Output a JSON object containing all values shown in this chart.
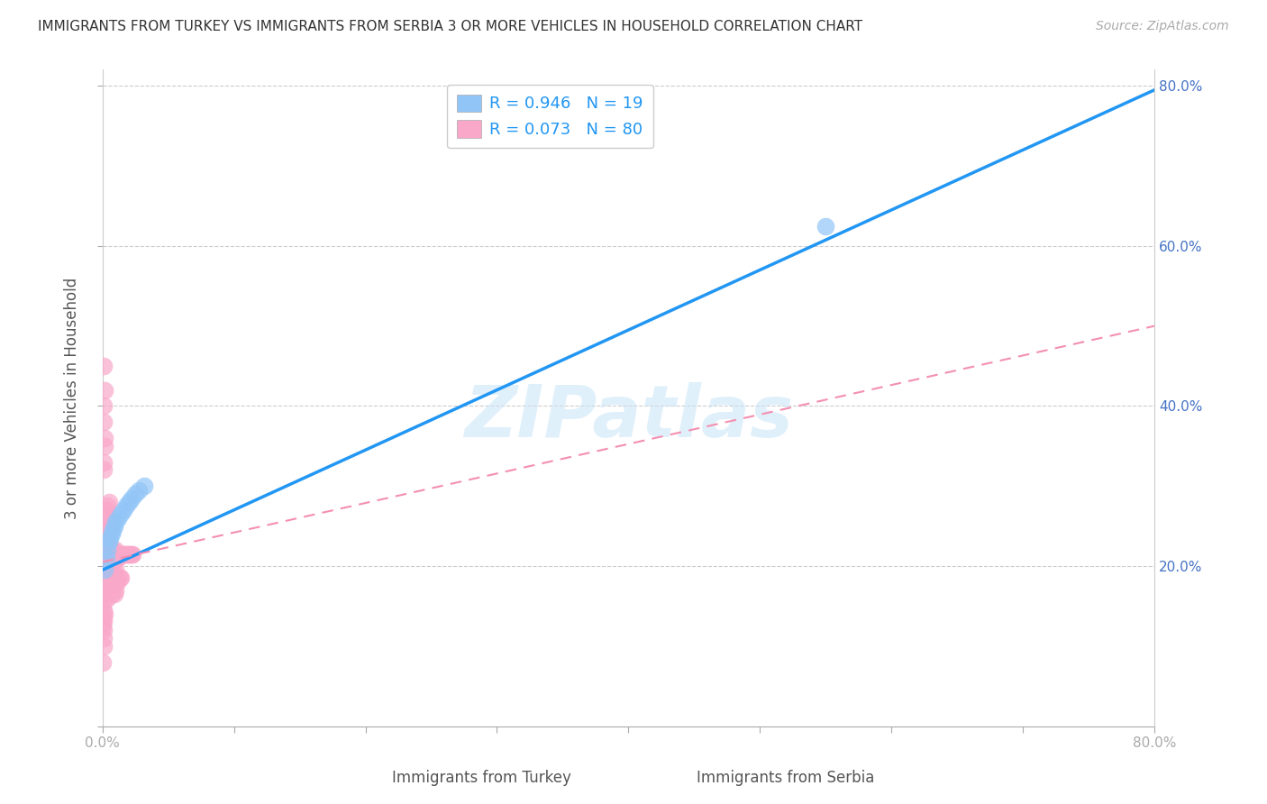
{
  "title": "IMMIGRANTS FROM TURKEY VS IMMIGRANTS FROM SERBIA 3 OR MORE VEHICLES IN HOUSEHOLD CORRELATION CHART",
  "source": "Source: ZipAtlas.com",
  "xlabel_bottom": "Immigrants from Turkey",
  "xlabel2_bottom": "Immigrants from Serbia",
  "ylabel": "3 or more Vehicles in Household",
  "watermark": "ZIPatlas",
  "turkey_R": 0.946,
  "turkey_N": 19,
  "serbia_R": 0.073,
  "serbia_N": 80,
  "turkey_color": "#92C5F7",
  "serbia_color": "#F9A8C9",
  "turkey_line_color": "#2196F3",
  "serbia_line_color": "#F48FB1",
  "xlim": [
    0.0,
    0.8
  ],
  "ylim": [
    0.0,
    0.82
  ],
  "xticks": [
    0.0,
    0.1,
    0.2,
    0.3,
    0.4,
    0.5,
    0.6,
    0.7,
    0.8
  ],
  "yticks": [
    0.0,
    0.2,
    0.4,
    0.6,
    0.8
  ],
  "ytick_labels_right": [
    "",
    "20.0%",
    "40.0%",
    "60.0%",
    "80.0%"
  ],
  "xtick_labels": [
    "0.0%",
    "",
    "",
    "",
    "",
    "",
    "",
    "",
    "80.0%"
  ],
  "turkey_line_x0": 0.0,
  "turkey_line_y0": 0.195,
  "turkey_line_x1": 0.8,
  "turkey_line_y1": 0.795,
  "serbia_line_x0": 0.0,
  "serbia_line_y0": 0.205,
  "serbia_line_x1": 0.8,
  "serbia_line_y1": 0.5,
  "turkey_x": [
    0.002,
    0.003,
    0.004,
    0.005,
    0.006,
    0.007,
    0.008,
    0.009,
    0.01,
    0.012,
    0.014,
    0.016,
    0.018,
    0.02,
    0.022,
    0.025,
    0.028,
    0.032,
    0.55
  ],
  "turkey_y": [
    0.195,
    0.21,
    0.22,
    0.23,
    0.235,
    0.24,
    0.245,
    0.25,
    0.255,
    0.26,
    0.265,
    0.27,
    0.275,
    0.28,
    0.285,
    0.29,
    0.295,
    0.3,
    0.625
  ],
  "serbia_x": [
    0.0005,
    0.001,
    0.001,
    0.001,
    0.0015,
    0.002,
    0.002,
    0.002,
    0.0025,
    0.003,
    0.003,
    0.003,
    0.0035,
    0.004,
    0.004,
    0.004,
    0.0045,
    0.005,
    0.005,
    0.005,
    0.006,
    0.006,
    0.006,
    0.007,
    0.007,
    0.007,
    0.008,
    0.008,
    0.008,
    0.009,
    0.009,
    0.009,
    0.01,
    0.01,
    0.01,
    0.011,
    0.011,
    0.012,
    0.012,
    0.013,
    0.013,
    0.014,
    0.014,
    0.015,
    0.016,
    0.017,
    0.018,
    0.019,
    0.02,
    0.021,
    0.022,
    0.023,
    0.001,
    0.001,
    0.002,
    0.002,
    0.003,
    0.003,
    0.004,
    0.004,
    0.005,
    0.005,
    0.001,
    0.001,
    0.002,
    0.001,
    0.001,
    0.001,
    0.0005,
    0.001,
    0.001,
    0.002,
    0.002,
    0.001,
    0.001,
    0.002,
    0.001,
    0.001,
    0.0005,
    0.001
  ],
  "serbia_y": [
    0.215,
    0.22,
    0.19,
    0.175,
    0.23,
    0.21,
    0.185,
    0.165,
    0.24,
    0.225,
    0.195,
    0.17,
    0.235,
    0.215,
    0.19,
    0.16,
    0.245,
    0.225,
    0.2,
    0.175,
    0.22,
    0.195,
    0.175,
    0.215,
    0.19,
    0.165,
    0.22,
    0.195,
    0.175,
    0.215,
    0.19,
    0.165,
    0.22,
    0.195,
    0.17,
    0.21,
    0.18,
    0.21,
    0.185,
    0.215,
    0.185,
    0.215,
    0.185,
    0.215,
    0.215,
    0.215,
    0.215,
    0.215,
    0.215,
    0.215,
    0.215,
    0.215,
    0.255,
    0.235,
    0.265,
    0.245,
    0.27,
    0.25,
    0.275,
    0.255,
    0.28,
    0.26,
    0.33,
    0.32,
    0.35,
    0.145,
    0.135,
    0.155,
    0.125,
    0.4,
    0.38,
    0.42,
    0.36,
    0.13,
    0.12,
    0.14,
    0.11,
    0.1,
    0.08,
    0.45
  ]
}
